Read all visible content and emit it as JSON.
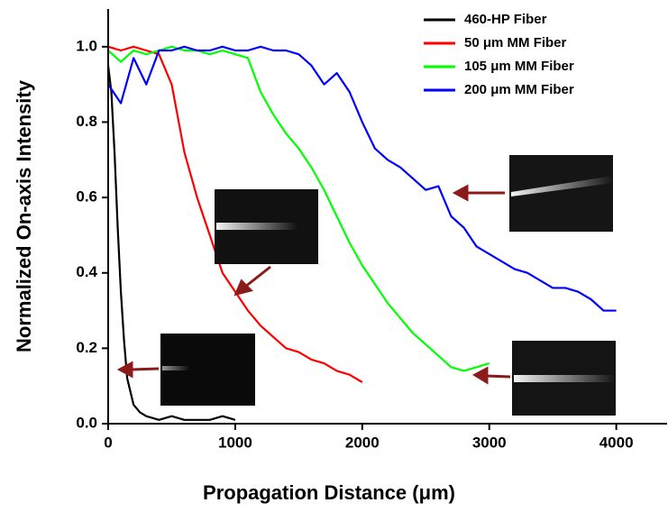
{
  "chart_data": {
    "type": "line",
    "xlabel": "Propagation Distance (μm)",
    "ylabel": "Normalized On-axis Intensity",
    "xlim": [
      0,
      4400
    ],
    "ylim": [
      0,
      1.1
    ],
    "xticks": [
      0,
      1000,
      2000,
      3000,
      4000
    ],
    "yticks": [
      {
        "value": 0,
        "label": "0.0"
      },
      0.2,
      0.4,
      0.6,
      0.8,
      {
        "value": 1,
        "label": "1.0"
      }
    ],
    "legend": "upper right",
    "series": [
      {
        "name": "460-HP Fiber",
        "color": "#000000",
        "x": [
          0,
          25,
          50,
          75,
          100,
          125,
          150,
          200,
          250,
          300,
          400,
          500,
          600,
          700,
          800,
          900,
          1000
        ],
        "values": [
          0.95,
          0.88,
          0.72,
          0.52,
          0.35,
          0.22,
          0.12,
          0.05,
          0.03,
          0.02,
          0.01,
          0.02,
          0.01,
          0.01,
          0.01,
          0.02,
          0.01
        ]
      },
      {
        "name": "50 μm MM Fiber",
        "color": "#ff0000",
        "x": [
          0,
          100,
          200,
          300,
          400,
          500,
          600,
          700,
          800,
          900,
          1000,
          1100,
          1200,
          1300,
          1400,
          1500,
          1600,
          1700,
          1800,
          1900,
          2000
        ],
        "values": [
          1.0,
          0.99,
          1.0,
          0.99,
          0.98,
          0.9,
          0.72,
          0.6,
          0.5,
          0.4,
          0.35,
          0.3,
          0.26,
          0.23,
          0.2,
          0.19,
          0.17,
          0.16,
          0.14,
          0.13,
          0.11
        ]
      },
      {
        "name": "105 μm MM Fiber",
        "color": "#00ff00",
        "x": [
          0,
          100,
          200,
          300,
          400,
          500,
          600,
          700,
          800,
          900,
          1000,
          1100,
          1200,
          1300,
          1400,
          1500,
          1600,
          1700,
          1800,
          1900,
          2000,
          2100,
          2200,
          2300,
          2400,
          2500,
          2600,
          2700,
          2800,
          2900,
          3000
        ],
        "values": [
          0.99,
          0.96,
          0.99,
          0.98,
          0.99,
          1.0,
          0.99,
          0.99,
          0.98,
          0.99,
          0.98,
          0.97,
          0.88,
          0.82,
          0.77,
          0.73,
          0.68,
          0.62,
          0.55,
          0.48,
          0.42,
          0.37,
          0.32,
          0.28,
          0.24,
          0.21,
          0.18,
          0.15,
          0.14,
          0.15,
          0.16
        ]
      },
      {
        "name": "200 μm MM Fiber",
        "color": "#0000ff",
        "x": [
          0,
          100,
          200,
          300,
          400,
          500,
          600,
          700,
          800,
          900,
          1000,
          1100,
          1200,
          1300,
          1400,
          1500,
          1600,
          1700,
          1800,
          1900,
          2000,
          2100,
          2200,
          2300,
          2400,
          2500,
          2600,
          2700,
          2800,
          2900,
          3000,
          3100,
          3200,
          3300,
          3400,
          3500,
          3600,
          3700,
          3800,
          3900,
          4000
        ],
        "values": [
          0.9,
          0.85,
          0.97,
          0.9,
          0.99,
          0.99,
          1.0,
          0.99,
          0.99,
          1.0,
          0.99,
          0.99,
          1.0,
          0.99,
          0.99,
          0.98,
          0.95,
          0.9,
          0.93,
          0.88,
          0.8,
          0.73,
          0.7,
          0.68,
          0.65,
          0.62,
          0.63,
          0.55,
          0.52,
          0.47,
          0.45,
          0.43,
          0.41,
          0.4,
          0.38,
          0.36,
          0.36,
          0.35,
          0.33,
          0.3,
          0.3
        ]
      }
    ]
  }
}
